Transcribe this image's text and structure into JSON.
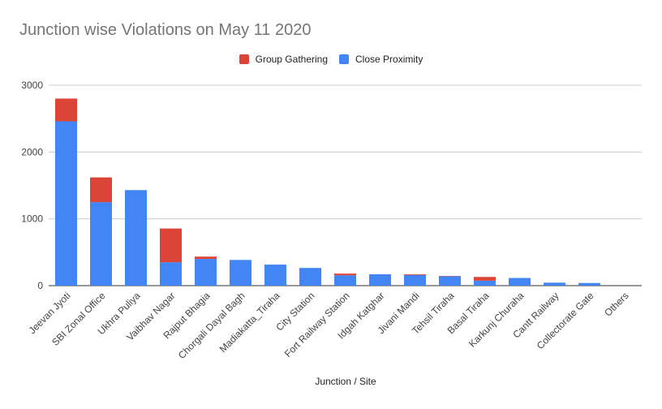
{
  "chart_data": {
    "type": "bar",
    "stacked": true,
    "title": "Junction wise Violations on May 11 2020",
    "xlabel": "Junction / Site",
    "ylabel": "",
    "ylim": [
      0,
      3000
    ],
    "yticks": [
      0,
      1000,
      2000,
      3000
    ],
    "grid": true,
    "legend_position": "top",
    "categories": [
      "Jeevan Jyoti",
      "SBI Zonal Office",
      "Ukhra Puliya",
      "Vaibhav Nagar",
      "Rajput Bhagia",
      "Chorgali Dayal Bagh",
      "Madiakatta_Tiraha",
      "City Station",
      "Fort Railway Station",
      "Idgah Katghar",
      "Jivani Mandi",
      "Tehsil Tiraha",
      "Basal Tiraha",
      "Karkunj Churaha",
      "Cantt Railway",
      "Collectorate Gate",
      "Others"
    ],
    "series": [
      {
        "name": "Close Proximity",
        "color": "#4285f4",
        "values": [
          2460,
          1250,
          1430,
          350,
          400,
          385,
          315,
          265,
          155,
          170,
          160,
          140,
          75,
          115,
          45,
          40,
          0
        ]
      },
      {
        "name": "Group Gathering",
        "color": "#db4437",
        "values": [
          340,
          370,
          0,
          505,
          35,
          0,
          0,
          0,
          25,
          0,
          10,
          5,
          55,
          0,
          0,
          0,
          0
        ]
      }
    ]
  }
}
